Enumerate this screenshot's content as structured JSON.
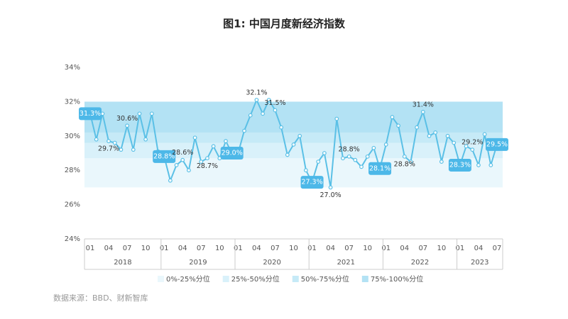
{
  "chart_data": {
    "type": "line",
    "title": "图1: 中国月度新经济指数",
    "source": "数据来源：BBD、财新智库",
    "categories": [
      "01",
      null,
      null,
      "04",
      null,
      null,
      "07",
      null,
      null,
      "10",
      null,
      null,
      "01",
      null,
      null,
      "04",
      null,
      null,
      "07",
      null,
      null,
      "10",
      null,
      null,
      "01",
      null,
      null,
      "04",
      null,
      null,
      "07",
      null,
      null,
      "10",
      null,
      null,
      "01",
      null,
      null,
      "04",
      null,
      null,
      "07",
      null,
      null,
      "10",
      null,
      null,
      "01",
      null,
      null,
      "04",
      null,
      null,
      "07",
      null,
      null,
      "10",
      null,
      null,
      "01",
      null,
      null,
      "04",
      null,
      null,
      "07"
    ],
    "years": [
      "2018",
      "2019",
      "2020",
      "2021",
      "2022",
      "2023"
    ],
    "series": [
      {
        "name": "新经济指数",
        "color": "#5bc0e6",
        "values": [
          31.3,
          29.8,
          31.3,
          29.7,
          29.6,
          29.2,
          30.6,
          29.2,
          31.3,
          29.8,
          31.3,
          29.1,
          28.8,
          27.4,
          28.3,
          28.6,
          28.0,
          29.9,
          28.5,
          28.7,
          29.4,
          28.7,
          29.7,
          29.0,
          29.0,
          30.3,
          31.2,
          32.1,
          31.3,
          32.1,
          31.5,
          30.5,
          28.9,
          29.5,
          30.0,
          28.0,
          27.3,
          28.5,
          29.0,
          27.0,
          31.0,
          28.7,
          28.8,
          28.6,
          28.2,
          28.8,
          29.3,
          28.1,
          29.5,
          31.1,
          30.6,
          28.8,
          28.5,
          30.5,
          31.4,
          30.0,
          30.2,
          28.5,
          30.0,
          29.6,
          28.3,
          29.4,
          29.2,
          28.3,
          30.1,
          28.3,
          29.5
        ],
        "value_labels": [
          "31.3%",
          null,
          null,
          "29.7%",
          null,
          null,
          "30.6%",
          null,
          null,
          null,
          null,
          null,
          "28.8%",
          null,
          null,
          "28.6%",
          null,
          null,
          null,
          "28.7%",
          null,
          null,
          null,
          "29.0%",
          null,
          null,
          null,
          "32.1%",
          null,
          null,
          "31.5%",
          null,
          null,
          null,
          null,
          null,
          "27.3%",
          null,
          null,
          "27.0%",
          null,
          null,
          "28.8%",
          null,
          null,
          null,
          null,
          "28.1%",
          null,
          null,
          null,
          "28.8%",
          null,
          null,
          "31.4%",
          null,
          null,
          null,
          null,
          null,
          "28.3%",
          null,
          "29.2%",
          null,
          null,
          null,
          "29.5%"
        ]
      }
    ],
    "highlight_points": [
      0,
      12,
      23,
      36,
      47,
      60,
      66
    ],
    "bands": [
      {
        "name": "0%-25%分位",
        "range": [
          27.0,
          28.7
        ],
        "color": "#eaf7fc"
      },
      {
        "name": "25%-50%分位",
        "range": [
          28.7,
          29.6
        ],
        "color": "#d9f1fa"
      },
      {
        "name": "50%-75%分位",
        "range": [
          29.6,
          30.2
        ],
        "color": "#c6eaf7"
      },
      {
        "name": "75%-100%分位",
        "range": [
          30.2,
          32.0
        ],
        "color": "#b3e2f4"
      }
    ],
    "ylim": [
      24,
      34
    ],
    "yticks": [
      {
        "value": 24,
        "label": "24%"
      },
      {
        "value": 26,
        "label": "26%"
      },
      {
        "value": 28,
        "label": "28%"
      },
      {
        "value": 30,
        "label": "30%"
      },
      {
        "value": 32,
        "label": "32%"
      },
      {
        "value": 34,
        "label": "34%"
      }
    ],
    "grid": false,
    "legend": "bottom"
  }
}
